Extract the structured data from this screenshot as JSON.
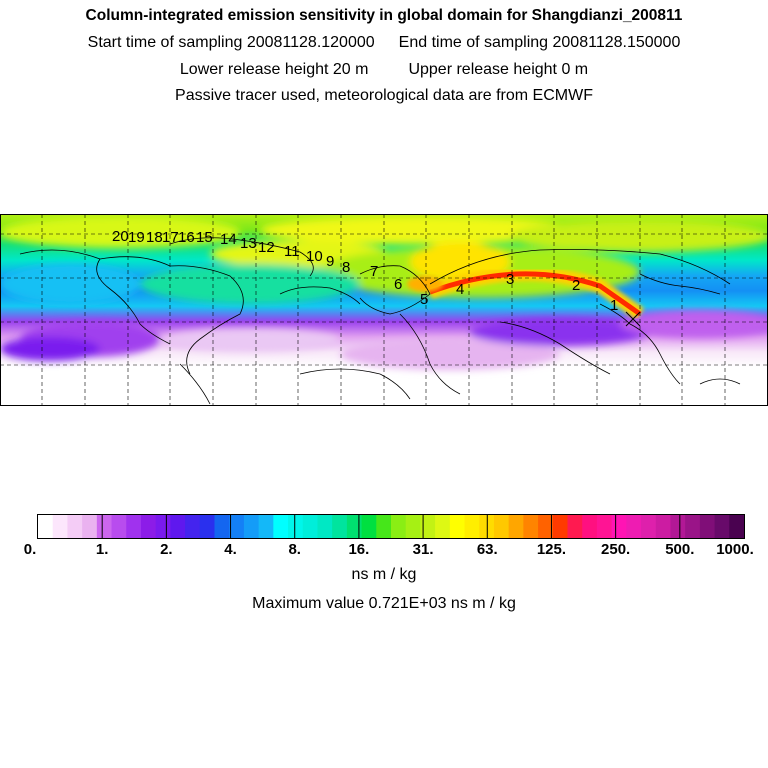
{
  "header": {
    "title": "Column-integrated emission sensitivity in global domain for Shangdianzi_200811",
    "start_label": "Start time of sampling 20081128.120000",
    "end_label": "End time of sampling 20081128.150000",
    "lower_label": "Lower release height   20 m",
    "upper_label": "Upper release height    0 m",
    "info_label": "Passive tracer used, meteorological data are from ECMWF"
  },
  "map": {
    "trajectory_labels": [
      "20",
      "19",
      "18",
      "17",
      "16",
      "15",
      "14",
      "13",
      "12",
      "11",
      "10",
      "9",
      "8",
      "7",
      "6",
      "5",
      "4",
      "3",
      "2",
      "1"
    ],
    "station": "Shangdianzi",
    "colors": {
      "background": "#ffffff",
      "grid": "#000000",
      "trajectory": "#ff0000"
    }
  },
  "colorbar": {
    "labels": [
      "0.",
      "1.",
      "2.",
      "4.",
      "8.",
      "16.",
      "31.",
      "63.",
      "125.",
      "250.",
      "500.",
      "1000."
    ],
    "colors": [
      "#ffffff",
      "#fce6fc",
      "#f4ccf6",
      "#eab2f0",
      "#cc66ee",
      "#b84cee",
      "#a032ee",
      "#8c1ce8",
      "#7a1aee",
      "#5f18ee",
      "#4424ee",
      "#2a30ee",
      "#1466f0",
      "#1480f6",
      "#149cf8",
      "#14b8f8",
      "#00ffff",
      "#00f6ea",
      "#00eeda",
      "#00e8c4",
      "#00e49e",
      "#00e070",
      "#00e040",
      "#46e61a",
      "#8aee14",
      "#a6f014",
      "#c2f214",
      "#ddf814",
      "#ffff00",
      "#ffee00",
      "#ffdc00",
      "#ffc800",
      "#ffa600",
      "#ff8400",
      "#ff6200",
      "#ff3a00",
      "#ff1a50",
      "#ff1080",
      "#ff1494",
      "#ff14b4",
      "#ee1cb2",
      "#de20ac",
      "#cc1ca2",
      "#b21896",
      "#9a1488",
      "#800e78",
      "#680a6a",
      "#4a0250"
    ],
    "unit_label": "ns m / kg",
    "max_label": "Maximum value  0.721E+03 ns m / kg"
  }
}
